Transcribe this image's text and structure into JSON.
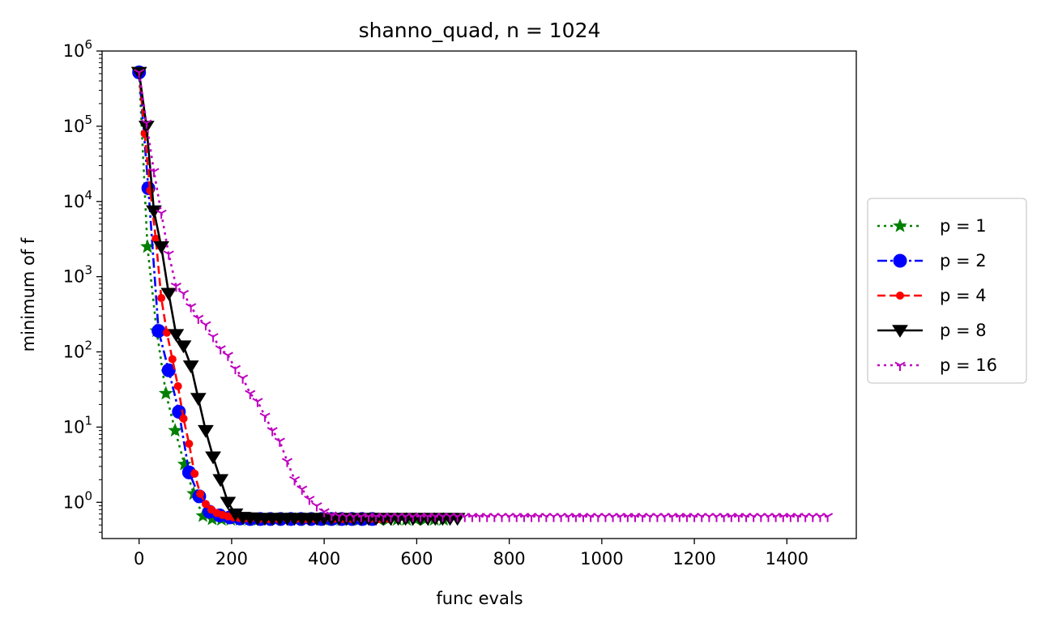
{
  "chart_data": {
    "type": "line",
    "title": "shanno_quad, n = 1024",
    "xlabel": "func evals",
    "ylabel": "minimum of f",
    "xlim": [
      -80,
      1550
    ],
    "ylim": [
      0.33,
      1000000
    ],
    "yscale": "log",
    "xticks": [
      0,
      200,
      400,
      600,
      800,
      1000,
      1200,
      1400
    ],
    "xtick_labels": [
      "0",
      "200",
      "400",
      "600",
      "800",
      "1000",
      "1200",
      "1400"
    ],
    "yticks": [
      1,
      10,
      100,
      1000,
      10000,
      100000,
      1000000
    ],
    "ytick_labels": [
      {
        "base": "10",
        "exp": "0"
      },
      {
        "base": "10",
        "exp": "1"
      },
      {
        "base": "10",
        "exp": "2"
      },
      {
        "base": "10",
        "exp": "3"
      },
      {
        "base": "10",
        "exp": "4"
      },
      {
        "base": "10",
        "exp": "5"
      },
      {
        "base": "10",
        "exp": "6"
      }
    ],
    "grid": false,
    "legend_position": "outside-right",
    "series": [
      {
        "name": "p = 1",
        "color": "#008000",
        "dash": "dotted",
        "marker": "star",
        "x": [
          0,
          18,
          38,
          58,
          78,
          98,
          118,
          138,
          158,
          178,
          198,
          218,
          238,
          258,
          278,
          298,
          318,
          338,
          358,
          378,
          398,
          418,
          438,
          458,
          478,
          498,
          518,
          538,
          558,
          578,
          598,
          618,
          638,
          658
        ],
        "y": [
          520000,
          2500,
          190,
          28,
          9,
          3.2,
          1.3,
          0.66,
          0.6,
          0.59,
          0.59,
          0.59,
          0.59,
          0.59,
          0.59,
          0.59,
          0.59,
          0.59,
          0.59,
          0.59,
          0.59,
          0.59,
          0.59,
          0.59,
          0.59,
          0.59,
          0.59,
          0.59,
          0.59,
          0.59,
          0.59,
          0.59,
          0.59,
          0.59
        ]
      },
      {
        "name": "p = 2",
        "color": "#0000ff",
        "dash": "dashdot",
        "marker": "circle",
        "x": [
          0,
          20,
          42,
          64,
          86,
          108,
          130,
          152,
          174,
          196,
          218,
          240,
          262,
          284,
          306,
          328,
          350,
          372,
          394,
          416,
          438,
          460,
          482,
          504
        ],
        "y": [
          520000,
          15000,
          190,
          57,
          16,
          2.5,
          1.2,
          0.75,
          0.67,
          0.63,
          0.61,
          0.6,
          0.6,
          0.6,
          0.6,
          0.6,
          0.6,
          0.6,
          0.6,
          0.6,
          0.6,
          0.6,
          0.6,
          0.6
        ]
      },
      {
        "name": "p = 4",
        "color": "#ff0000",
        "dash": "dashed",
        "marker": "smalldot",
        "x": [
          0,
          12,
          24,
          36,
          48,
          60,
          72,
          84,
          96,
          108,
          120,
          132,
          144,
          156,
          168,
          180,
          192,
          204,
          216,
          228,
          240,
          260,
          280,
          300,
          320,
          340,
          360,
          380,
          400,
          420,
          440,
          460,
          480,
          500,
          520,
          540
        ],
        "y": [
          520000,
          80000,
          14000,
          3200,
          520,
          180,
          80,
          35,
          13,
          6,
          2.4,
          1.3,
          0.95,
          0.8,
          0.72,
          0.68,
          0.65,
          0.63,
          0.62,
          0.61,
          0.6,
          0.6,
          0.6,
          0.6,
          0.6,
          0.6,
          0.6,
          0.6,
          0.6,
          0.6,
          0.6,
          0.6,
          0.6,
          0.6,
          0.6,
          0.6
        ]
      },
      {
        "name": "p = 8",
        "color": "#000000",
        "dash": "solid",
        "marker": "triangle-down",
        "x": [
          0,
          16,
          32,
          48,
          64,
          80,
          96,
          112,
          128,
          144,
          160,
          176,
          192,
          208,
          224,
          240,
          256,
          272,
          288,
          304,
          320,
          336,
          352,
          368,
          384,
          400,
          416,
          432,
          448,
          464,
          480,
          496,
          512,
          528,
          544,
          560,
          576,
          592,
          608,
          624,
          640,
          656,
          672,
          688
        ],
        "y": [
          520000,
          100000,
          7500,
          2500,
          600,
          170,
          120,
          65,
          24,
          9,
          4,
          2,
          1,
          0.7,
          0.63,
          0.62,
          0.61,
          0.61,
          0.61,
          0.61,
          0.61,
          0.61,
          0.61,
          0.61,
          0.61,
          0.61,
          0.61,
          0.61,
          0.61,
          0.61,
          0.61,
          0.61,
          0.61,
          0.61,
          0.61,
          0.61,
          0.61,
          0.61,
          0.61,
          0.61,
          0.61,
          0.61,
          0.61,
          0.61
        ]
      },
      {
        "name": "p = 16",
        "color": "#bf00bf",
        "dash": "dotted",
        "marker": "tri-down",
        "x": [
          0,
          16,
          32,
          48,
          64,
          80,
          96,
          112,
          128,
          144,
          160,
          176,
          192,
          208,
          224,
          240,
          256,
          272,
          288,
          304,
          320,
          336,
          352,
          368,
          384,
          400,
          416,
          432,
          448,
          464,
          480,
          496,
          512,
          528,
          544,
          560,
          576,
          592,
          608,
          624,
          640,
          656,
          672,
          688,
          704,
          720,
          736,
          752,
          768,
          784,
          800,
          816,
          832,
          848,
          864,
          880,
          896,
          912,
          928,
          944,
          960,
          976,
          992,
          1008,
          1024,
          1040,
          1056,
          1072,
          1088,
          1104,
          1120,
          1136,
          1152,
          1168,
          1184,
          1200,
          1216,
          1232,
          1248,
          1264,
          1280,
          1296,
          1312,
          1328,
          1344,
          1360,
          1376,
          1392,
          1408,
          1424,
          1440,
          1456,
          1472,
          1488
        ],
        "y": [
          520000,
          110000,
          25000,
          7000,
          2000,
          750,
          600,
          400,
          280,
          230,
          160,
          110,
          90,
          60,
          45,
          28,
          22,
          14,
          9,
          6.5,
          3.5,
          2,
          1.5,
          1.1,
          0.9,
          0.75,
          0.68,
          0.66,
          0.65,
          0.65,
          0.65,
          0.65,
          0.65,
          0.65,
          0.65,
          0.65,
          0.65,
          0.65,
          0.65,
          0.65,
          0.65,
          0.65,
          0.65,
          0.65,
          0.65,
          0.65,
          0.65,
          0.65,
          0.65,
          0.65,
          0.65,
          0.65,
          0.65,
          0.65,
          0.65,
          0.65,
          0.65,
          0.65,
          0.65,
          0.65,
          0.65,
          0.65,
          0.65,
          0.65,
          0.65,
          0.65,
          0.65,
          0.65,
          0.65,
          0.65,
          0.65,
          0.65,
          0.65,
          0.65,
          0.65,
          0.65,
          0.65,
          0.65,
          0.65,
          0.65,
          0.65,
          0.65,
          0.65,
          0.65,
          0.65,
          0.65,
          0.65,
          0.65,
          0.65,
          0.65,
          0.65,
          0.65,
          0.65,
          0.65
        ]
      }
    ]
  }
}
